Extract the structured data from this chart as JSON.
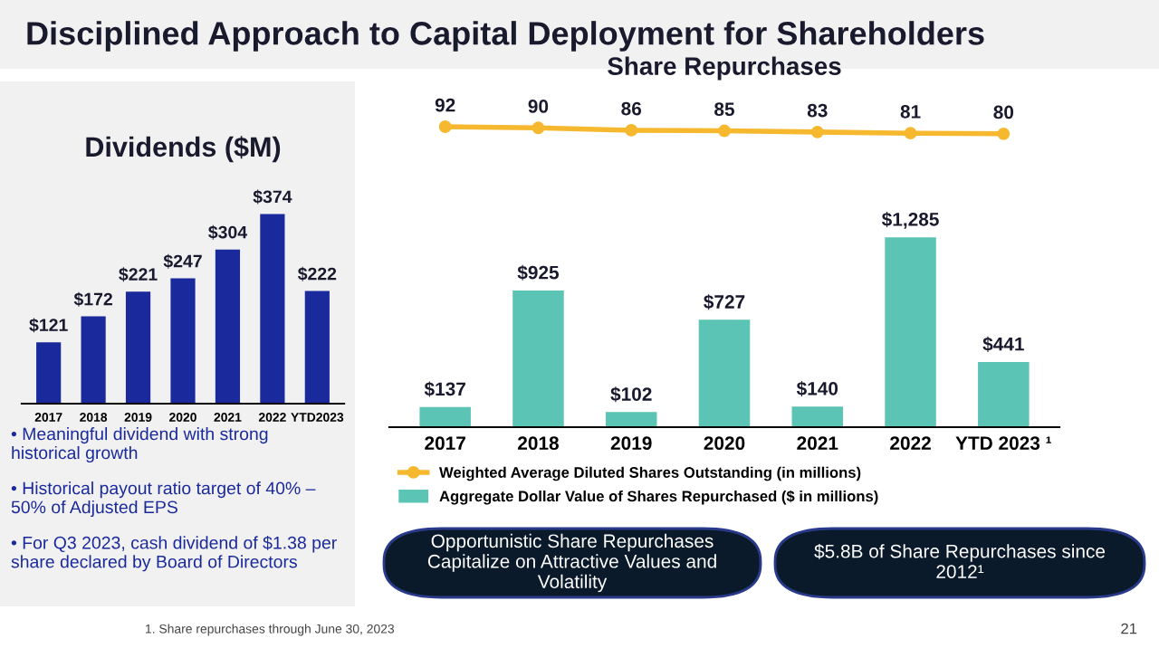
{
  "chart_data": [
    {
      "type": "bar",
      "title": "Dividends ($M)",
      "categories": [
        "2017",
        "2018",
        "2019",
        "2020",
        "2021",
        "2022",
        "YTD2023"
      ],
      "values": [
        121,
        172,
        221,
        247,
        304,
        374,
        222
      ],
      "color": "#1a2a9c",
      "value_labels": [
        "$121",
        "$172",
        "$221",
        "$247",
        "$304",
        "$374",
        "$222"
      ],
      "grid": false,
      "annotations": [
        "Disciplined Approach to Capital Deployment for Shareholders",
        "• Meaningful dividend with strong historical growth",
        "• Historical payout ratio target of 40% – 50% of Adjusted EPS",
        "• For Q3 2023, cash dividend of $1.38 per share declared by Board of Directors"
      ]
    },
    {
      "type": "line",
      "title": "Share Repurchases",
      "categories": [
        null,
        null,
        null,
        null,
        null,
        null,
        null
      ],
      "grid": false,
      "legend": "bottom",
      "marker": "circle",
      "tick_labels": false,
      "series": [
        {
          "name": "Weighted Average Diluted Shares Outstanding (in millions)",
          "color": "#f5b82e",
          "values": [
            92,
            90,
            86,
            85,
            83,
            81,
            80
          ],
          "value_labels": [
            "92",
            "90",
            "86",
            "85",
            "83",
            "81",
            "80"
          ]
        }
      ]
    },
    {
      "type": "bar",
      "categories": [
        "2017",
        "2018",
        "2019",
        "2020",
        "2021",
        "2022",
        "YTD 2023 ¹"
      ],
      "grid": false,
      "legend": "bottom",
      "series": [
        {
          "name": "Aggregate Dollar Value of Shares Repurchased ($ in millions)",
          "color": "#5bc4b4",
          "values": [
            137,
            925,
            102,
            727,
            140,
            1285,
            441
          ],
          "value_labels": [
            "$137",
            "$925",
            "$102",
            "$727",
            "$140",
            "$1,285",
            "$441"
          ]
        }
      ],
      "annotations": [
        "Opportunistic Share Repurchases Capitalize on Attractive Values and Volatility",
        "$5.8B of Share Repurchases since 2012¹",
        "1. Share repurchases through June 30, 2023",
        "21"
      ]
    }
  ]
}
